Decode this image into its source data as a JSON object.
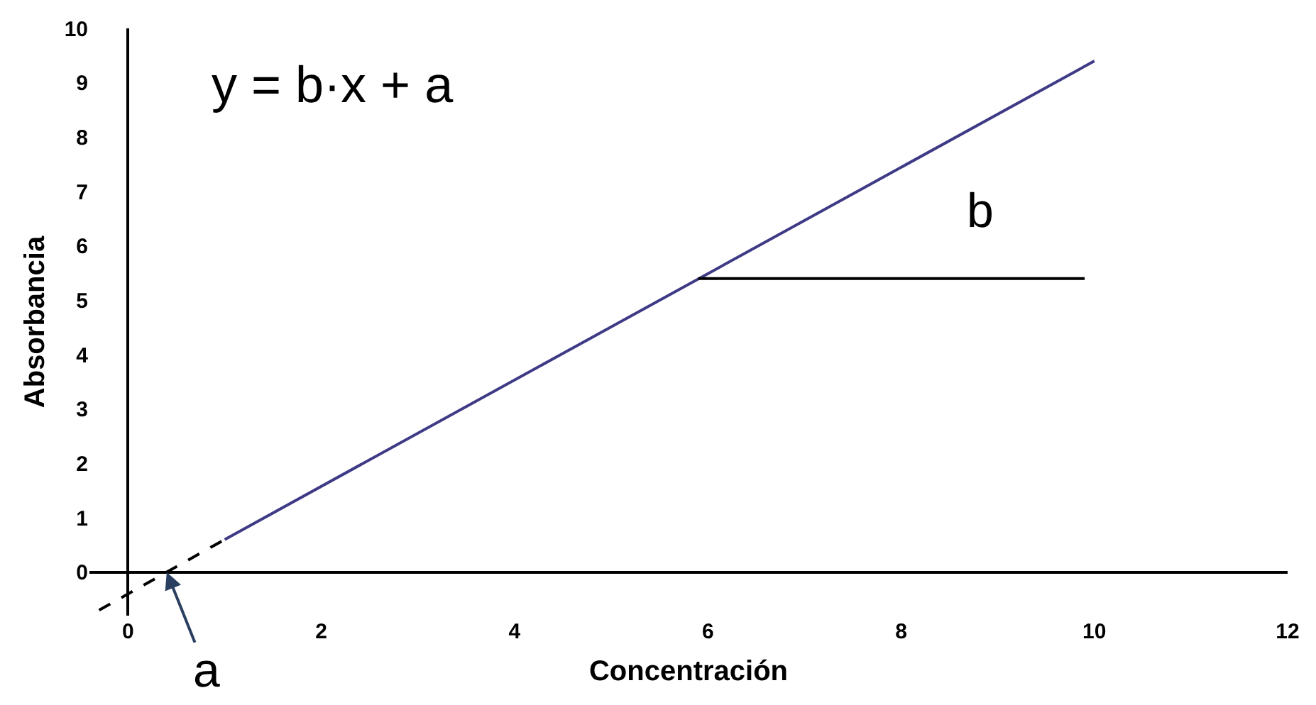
{
  "chart_data": {
    "type": "line",
    "xlabel": "Concentración",
    "ylabel": "Absorbancia",
    "xlim": [
      -0.4,
      12
    ],
    "ylim": [
      -0.8,
      10
    ],
    "xticks": [
      0,
      2,
      4,
      6,
      8,
      10,
      12
    ],
    "yticks": [
      0,
      1,
      2,
      3,
      4,
      5,
      6,
      7,
      8,
      9,
      10
    ],
    "marker": "none",
    "series": [
      {
        "x": [
          1,
          10
        ],
        "values": [
          0.6,
          9.4
        ],
        "color": "#3f3a86",
        "line_style": "solid"
      },
      {
        "x": [
          -0.3,
          1
        ],
        "values": [
          -0.7,
          0.6
        ],
        "color": "#000000",
        "line_style": "dashed"
      },
      {
        "x": [
          5.9,
          9.9
        ],
        "values": [
          5.4,
          5.4
        ],
        "color": "#000000",
        "line_style": "solid"
      }
    ],
    "annotations": [
      "y = b·x + a",
      "b",
      {
        "text": "a",
        "x": 0.4,
        "y": 0
      }
    ]
  }
}
